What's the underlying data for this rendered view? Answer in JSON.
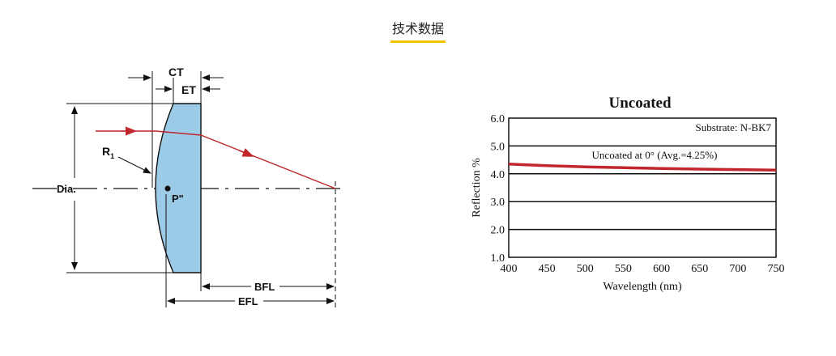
{
  "tab": {
    "title": "技术数据"
  },
  "diagram": {
    "labels": {
      "ct": "CT",
      "et": "ET",
      "r1": "R",
      "r1_sub": "1",
      "dia": "Dia.",
      "p": "P\"",
      "bfl": "BFL",
      "efl": "EFL"
    },
    "colors": {
      "lens_fill": "#9ccbe8",
      "ray": "#c0262c"
    }
  },
  "chart_data": {
    "type": "line",
    "title": "Uncoated",
    "xlabel": "Wavelength (nm)",
    "ylabel": "Reflection %",
    "xlim": [
      400,
      750
    ],
    "ylim": [
      1.0,
      6.0
    ],
    "xticks": [
      "400",
      "450",
      "500",
      "550",
      "600",
      "650",
      "700",
      "750"
    ],
    "yticks": [
      "1.0",
      "2.0",
      "3.0",
      "4.0",
      "5.0",
      "6.0"
    ],
    "annotations": {
      "substrate": "Substrate: N-BK7",
      "series_label": "Uncoated at 0°  (Avg.=4.25%)"
    },
    "series": [
      {
        "color": "#c0262c",
        "x": [
          400,
          450,
          500,
          550,
          600,
          650,
          700,
          750
        ],
        "y": [
          4.35,
          4.29,
          4.25,
          4.22,
          4.19,
          4.17,
          4.15,
          4.13
        ]
      }
    ]
  }
}
